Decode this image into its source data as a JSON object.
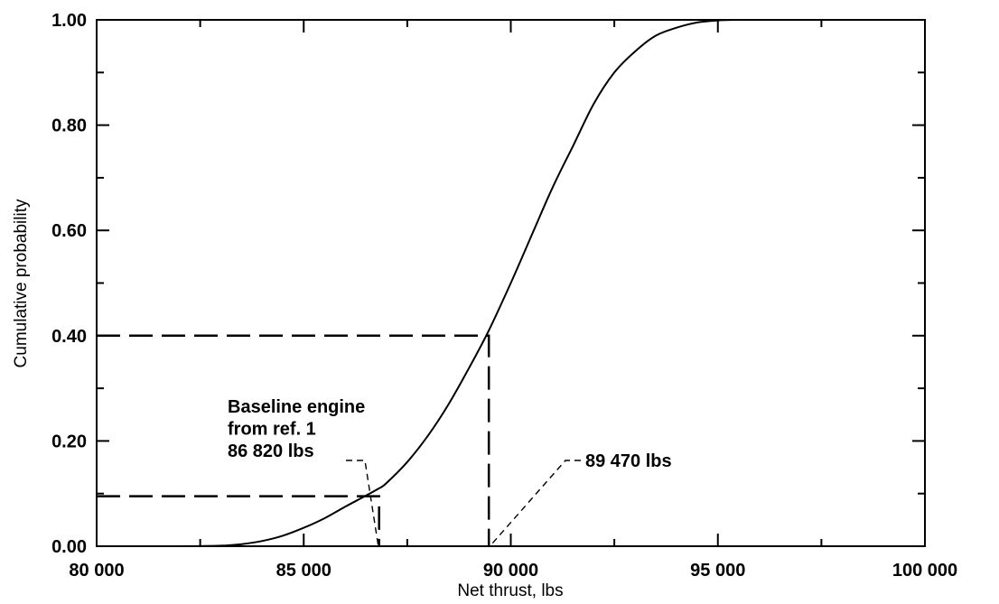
{
  "chart_data": {
    "type": "line",
    "title": "",
    "xlabel": "Net thrust, lbs",
    "ylabel": "Cumulative probability",
    "xlim": [
      80000,
      100000
    ],
    "ylim": [
      0,
      1
    ],
    "x_ticks": [
      80000,
      85000,
      90000,
      95000,
      100000
    ],
    "x_tick_labels": [
      "80 000",
      "85 000",
      "90 000",
      "95 000",
      "100 000"
    ],
    "y_ticks": [
      0,
      0.2,
      0.4,
      0.6,
      0.8,
      1.0
    ],
    "y_tick_labels": [
      "0.00",
      "0.20",
      "0.40",
      "0.60",
      "0.80",
      "1.00"
    ],
    "grid": false,
    "legend": "none",
    "series": [
      {
        "x": [
          80000,
          82000,
          83000,
          83500,
          84000,
          84500,
          85000,
          85500,
          86000,
          86500,
          86820,
          87000,
          87500,
          88000,
          88500,
          89000,
          89470,
          90000,
          90500,
          91000,
          91500,
          92000,
          92500,
          93000,
          93500,
          94000,
          94500,
          95000,
          95500,
          96000,
          97000,
          100000
        ],
        "y": [
          0.0,
          0.0,
          0.001,
          0.004,
          0.01,
          0.02,
          0.035,
          0.053,
          0.075,
          0.096,
          0.11,
          0.12,
          0.16,
          0.21,
          0.27,
          0.34,
          0.41,
          0.5,
          0.59,
          0.68,
          0.76,
          0.84,
          0.9,
          0.94,
          0.97,
          0.985,
          0.995,
          0.999,
          1.0,
          1.0,
          1.0,
          1.0
        ]
      }
    ],
    "reference_lines": [
      {
        "x": 86820,
        "y": 0.095
      },
      {
        "x": 89470,
        "y": 0.4
      }
    ],
    "annotations": [
      {
        "lines": [
          "Baseline engine",
          "from ref. 1",
          "86 820 lbs"
        ],
        "x": 86820
      },
      {
        "lines": [
          "89 470 lbs"
        ],
        "x": 89470
      }
    ]
  }
}
